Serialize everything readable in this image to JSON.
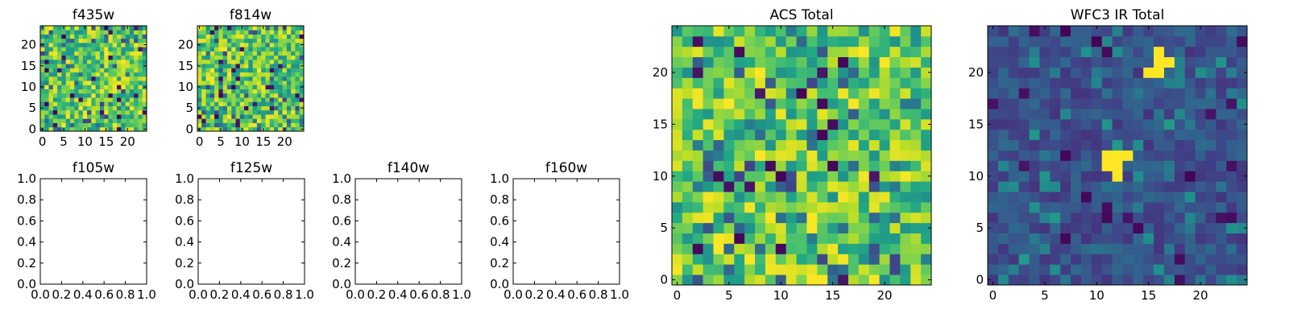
{
  "chart_data": [
    {
      "type": "heatmap",
      "title": "f435w",
      "colormap": "viridis",
      "xlim": [
        -0.5,
        24.5
      ],
      "ylim": [
        -0.5,
        24.5
      ],
      "xticks": [
        0,
        5,
        10,
        15,
        20
      ],
      "yticks": [
        0,
        5,
        10,
        15,
        20
      ],
      "grid_size": [
        25,
        25
      ],
      "seed": 11,
      "value_range": [
        0,
        1
      ],
      "value_bias": "high",
      "hotspots": []
    },
    {
      "type": "heatmap",
      "title": "f814w",
      "colormap": "viridis",
      "xlim": [
        -0.5,
        24.5
      ],
      "ylim": [
        -0.5,
        24.5
      ],
      "xticks": [
        0,
        5,
        10,
        15,
        20
      ],
      "yticks": [
        0,
        5,
        10,
        15,
        20
      ],
      "grid_size": [
        25,
        25
      ],
      "seed": 23,
      "value_range": [
        0,
        1
      ],
      "value_bias": "high",
      "hotspots": []
    },
    {
      "type": "empty",
      "title": "f105w",
      "xlim": [
        0,
        1
      ],
      "ylim": [
        0,
        1
      ],
      "xticks": [
        "0.0",
        "0.2",
        "0.4",
        "0.6",
        "0.8",
        "1.0"
      ],
      "yticks": [
        "0.0",
        "0.2",
        "0.4",
        "0.6",
        "0.8",
        "1.0"
      ]
    },
    {
      "type": "empty",
      "title": "f125w",
      "xlim": [
        0,
        1
      ],
      "ylim": [
        0,
        1
      ],
      "xticks": [
        "0.0",
        "0.2",
        "0.4",
        "0.6",
        "0.8",
        "1.0"
      ],
      "yticks": [
        "0.0",
        "0.2",
        "0.4",
        "0.6",
        "0.8",
        "1.0"
      ]
    },
    {
      "type": "empty",
      "title": "f140w",
      "xlim": [
        0,
        1
      ],
      "ylim": [
        0,
        1
      ],
      "xticks": [
        "0.0",
        "0.2",
        "0.4",
        "0.6",
        "0.8",
        "1.0"
      ],
      "yticks": [
        "0.0",
        "0.2",
        "0.4",
        "0.6",
        "0.8",
        "1.0"
      ]
    },
    {
      "type": "empty",
      "title": "f160w",
      "xlim": [
        0,
        1
      ],
      "ylim": [
        0,
        1
      ],
      "xticks": [
        "0.0",
        "0.2",
        "0.4",
        "0.6",
        "0.8",
        "1.0"
      ],
      "yticks": [
        "0.0",
        "0.2",
        "0.4",
        "0.6",
        "0.8",
        "1.0"
      ]
    },
    {
      "type": "heatmap",
      "title": "ACS Total",
      "colormap": "viridis",
      "xlim": [
        -0.5,
        24.5
      ],
      "ylim": [
        -0.5,
        24.5
      ],
      "xticks": [
        0,
        5,
        10,
        15,
        20
      ],
      "yticks": [
        0,
        5,
        10,
        15,
        20
      ],
      "grid_size": [
        25,
        25
      ],
      "seed": 37,
      "value_range": [
        0,
        1
      ],
      "value_bias": "high",
      "hotspots": []
    },
    {
      "type": "heatmap",
      "title": "WFC3 IR Total",
      "colormap": "viridis",
      "xlim": [
        -0.5,
        24.5
      ],
      "ylim": [
        -0.5,
        24.5
      ],
      "xticks": [
        0,
        5,
        10,
        15,
        20
      ],
      "yticks": [
        0,
        5,
        10,
        15,
        20
      ],
      "grid_size": [
        25,
        25
      ],
      "seed": 53,
      "value_range": [
        0,
        1
      ],
      "value_bias": "low",
      "hotspots": [
        {
          "x": 16,
          "y": 21,
          "value": 1.0
        },
        {
          "x": 16,
          "y": 22,
          "value": 1.0
        },
        {
          "x": 17,
          "y": 21,
          "value": 1.0
        },
        {
          "x": 15,
          "y": 20,
          "value": 1.0
        },
        {
          "x": 16,
          "y": 20,
          "value": 1.0
        },
        {
          "x": 12,
          "y": 11,
          "value": 1.0
        },
        {
          "x": 12,
          "y": 12,
          "value": 1.0
        },
        {
          "x": 11,
          "y": 11,
          "value": 1.0
        },
        {
          "x": 13,
          "y": 12,
          "value": 1.0
        },
        {
          "x": 11,
          "y": 12,
          "value": 1.0
        },
        {
          "x": 12,
          "y": 10,
          "value": 1.0
        }
      ]
    }
  ]
}
